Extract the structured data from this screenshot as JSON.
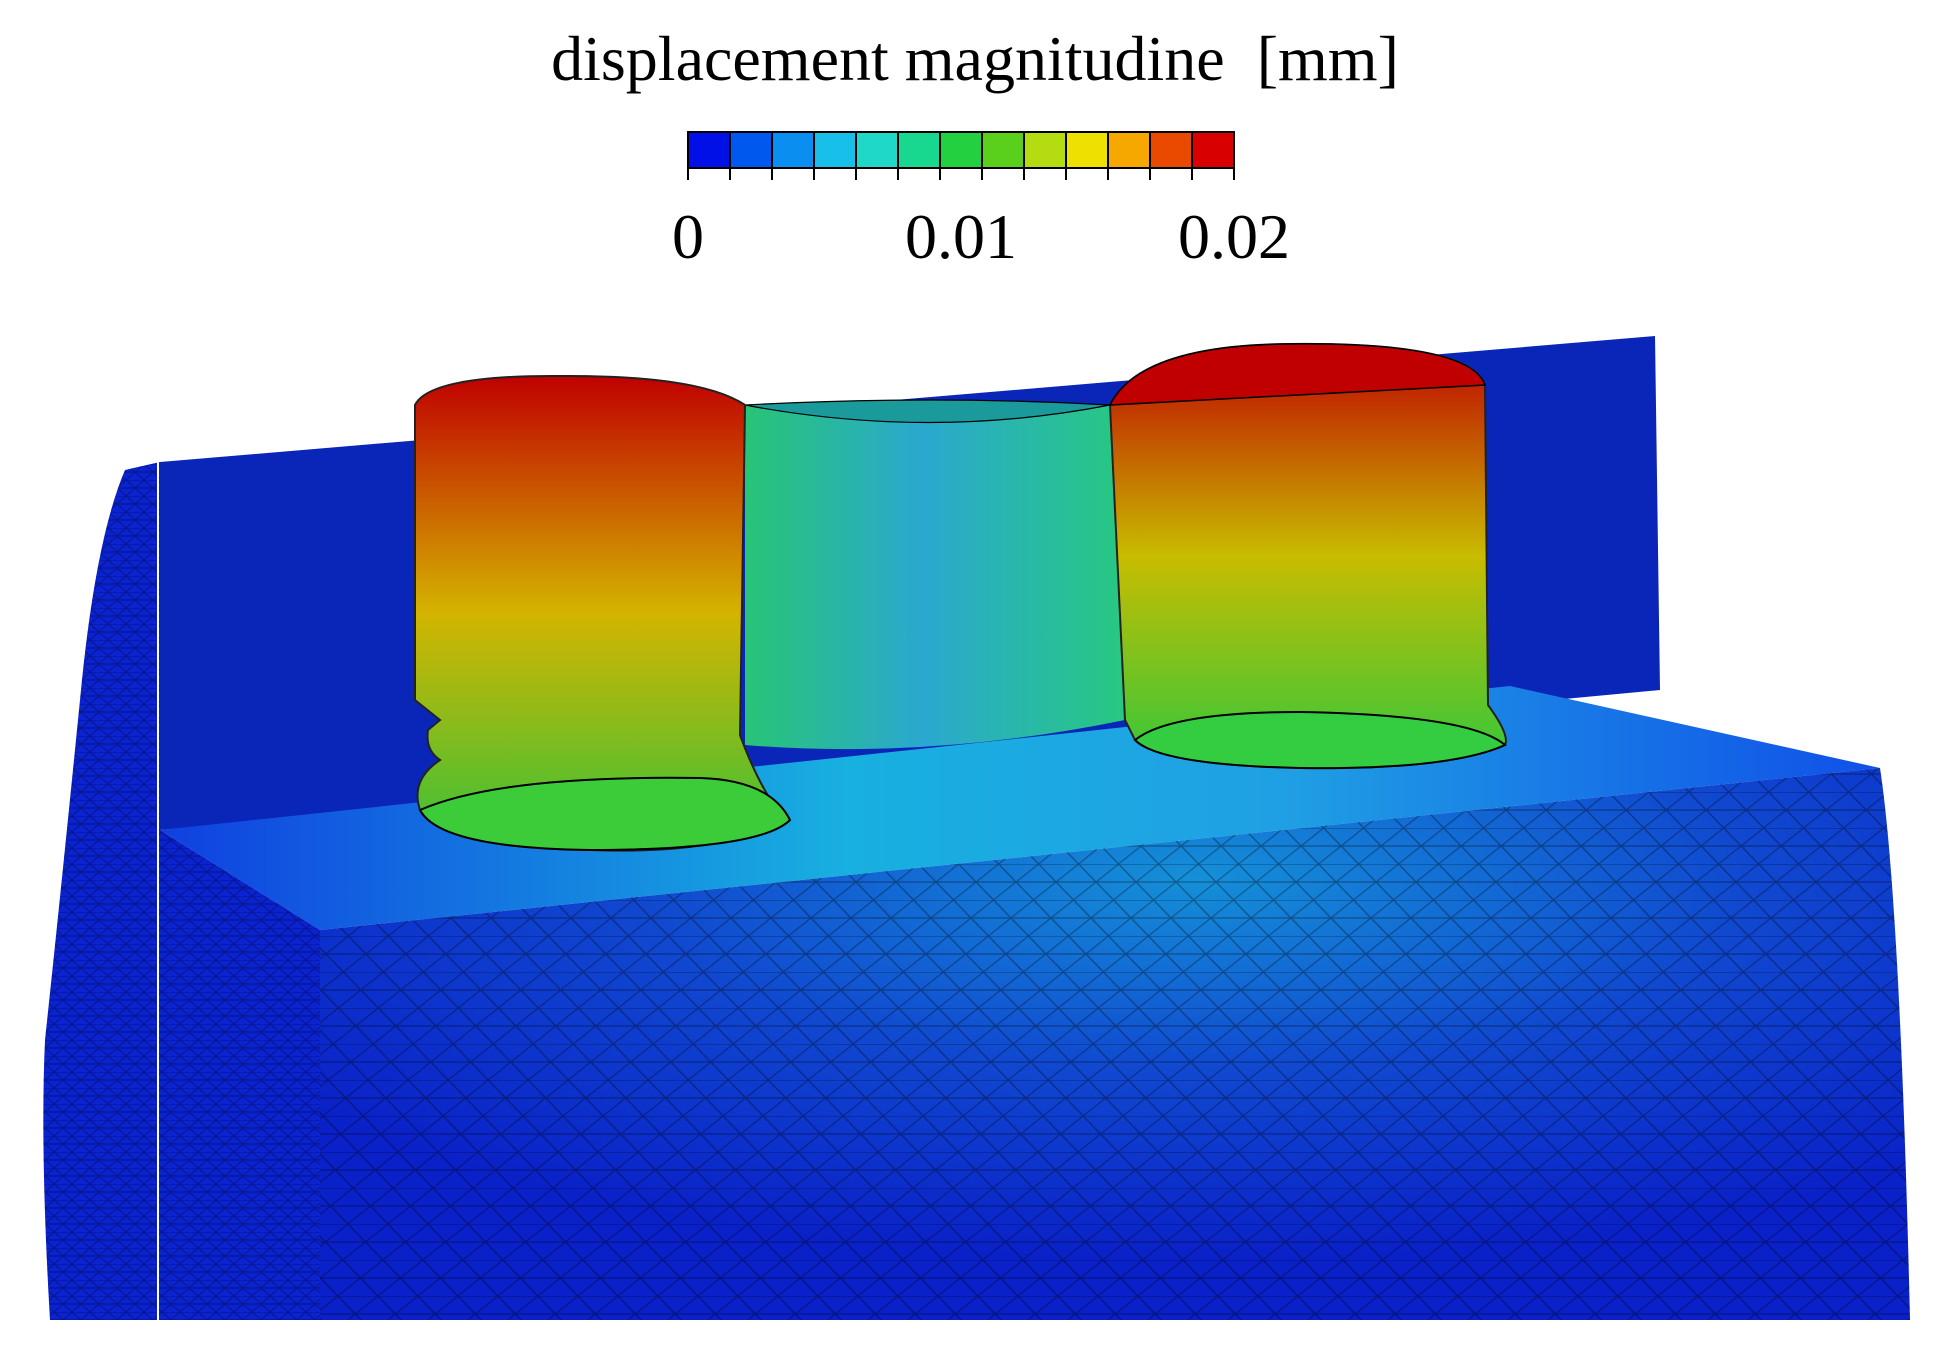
{
  "colorbar": {
    "title": "displacement magnitudine  [mm]",
    "min": 0,
    "max": 0.02,
    "levels": 13,
    "ticks": [
      {
        "value": 0,
        "label": "0"
      },
      {
        "value": 0.01,
        "label": "0.01"
      },
      {
        "value": 0.02,
        "label": "0.02"
      }
    ],
    "colors": [
      "#0010e6",
      "#0058ee",
      "#0a8ff0",
      "#18bfe8",
      "#1fd8c8",
      "#18d890",
      "#22d040",
      "#5ad01c",
      "#b4dc10",
      "#eee000",
      "#f6a800",
      "#ea4a00",
      "#d80000"
    ]
  },
  "model": {
    "body_color": "#0a22d0",
    "cut_face_color": "#0a26b8",
    "mesh_line_color": "#000000",
    "left_post": {
      "top_color": "#c00000",
      "mid_color": "#d4b400",
      "base_color": "#34c23a"
    },
    "right_post": {
      "top_color": "#c00000",
      "mid_color": "#c8bc00",
      "base_color": "#30c83c"
    },
    "bridge_color": "#30b4c8"
  }
}
